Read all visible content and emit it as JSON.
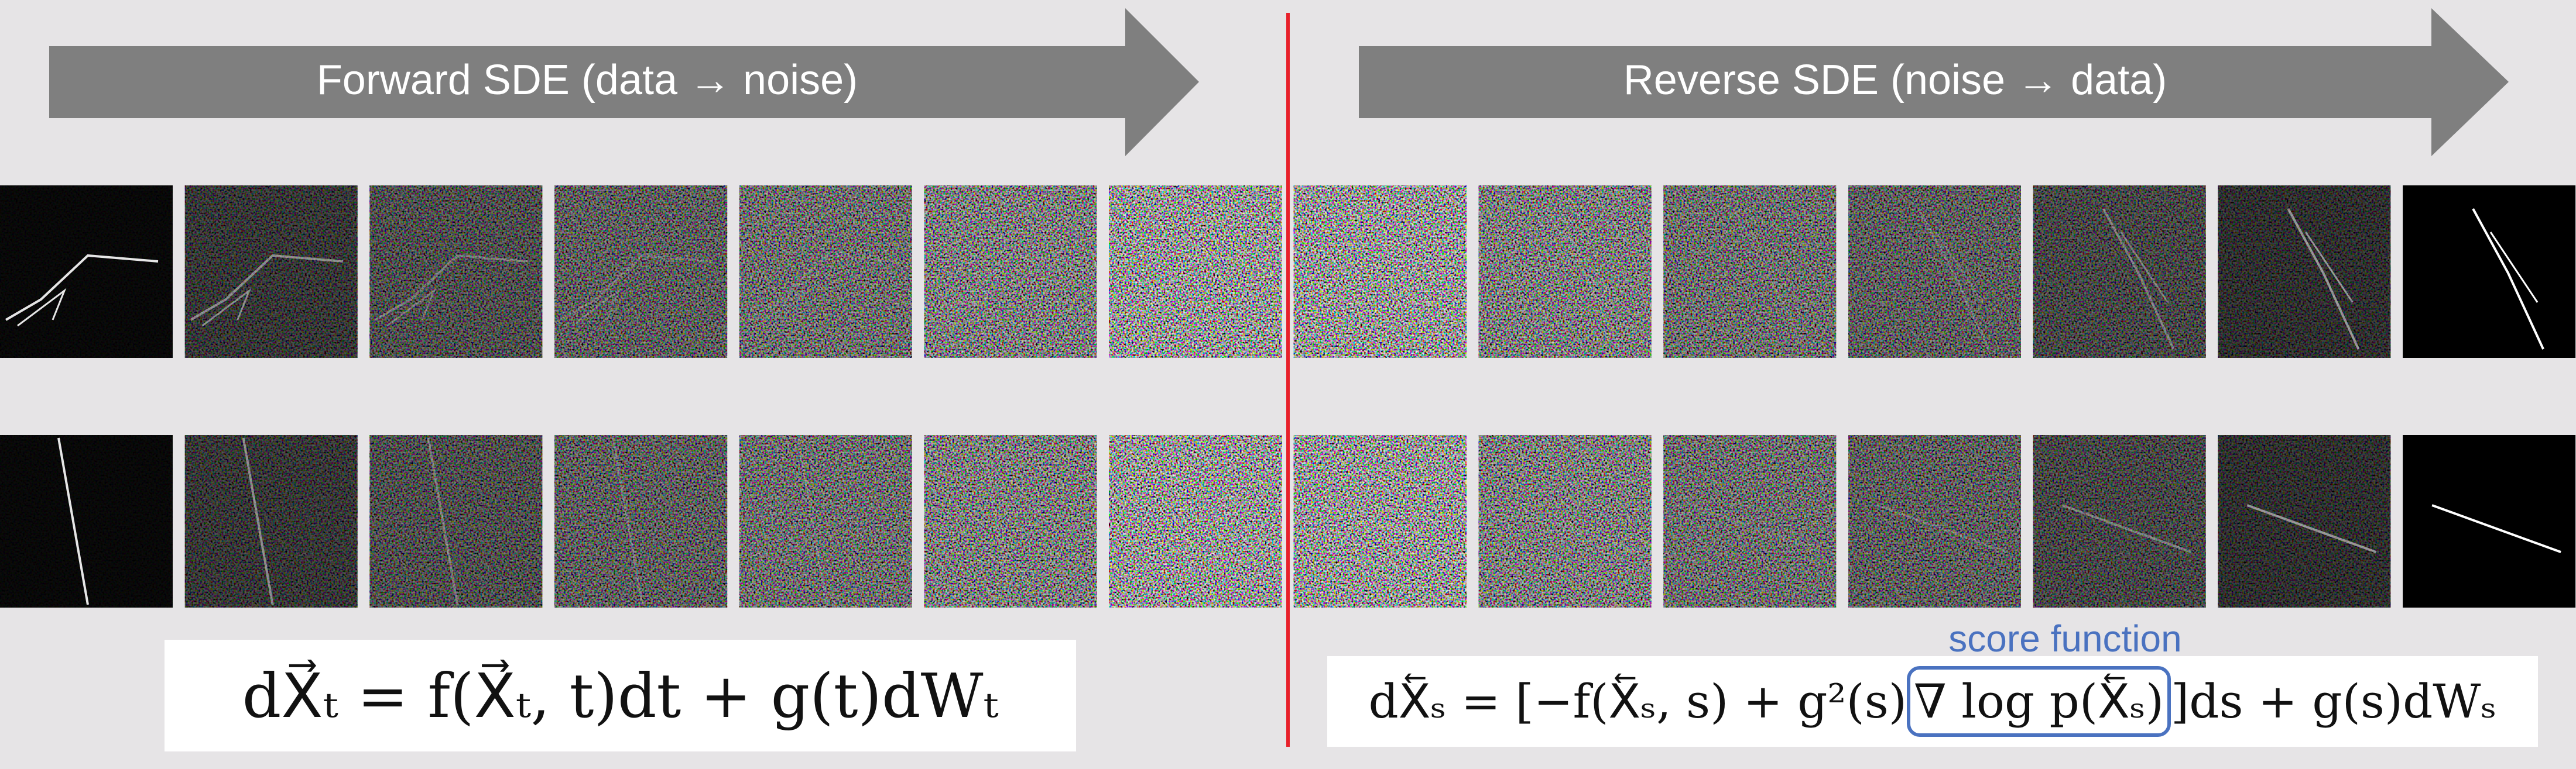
{
  "header": {
    "forward": "Forward SDE (data → noise)",
    "reverse": "Reverse SDE (noise → data)"
  },
  "formulas": {
    "forward": "dX⃗ₜ = f(X⃗ₜ, t)dt + g(t)dWₜ",
    "reverse_prefix": "dX⃖ₛ = [−f(X⃖ₛ, s) + g²(s)",
    "reverse_score": "∇ log p(X⃖ₛ)",
    "reverse_suffix": "]ds + g(s)dWₛ"
  },
  "annotation": "score function"
}
